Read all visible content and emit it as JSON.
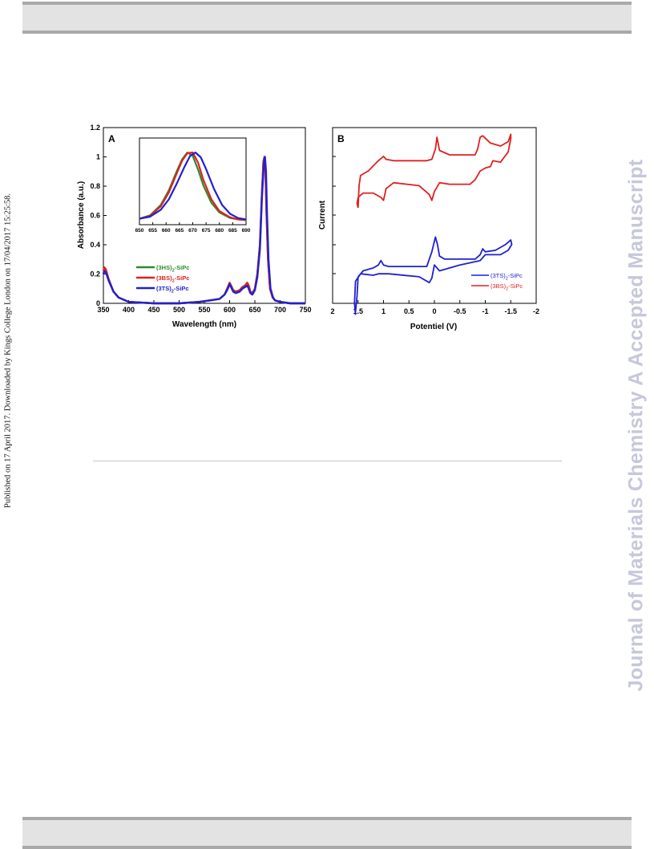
{
  "page": {
    "side_left_text": "Published on 17 April 2017. Downloaded by Kings College London on 17/04/2017 15:25:58.",
    "side_right_text": "Journal of Materials Chemistry A Accepted Manuscript"
  },
  "chart_data": [
    {
      "type": "line",
      "panel_label": "A",
      "xlabel": "Wavelength (nm)",
      "ylabel": "Absorbance (a.u.)",
      "xlim": [
        350,
        750
      ],
      "ylim": [
        0,
        1.2
      ],
      "xticks": [
        "350",
        "400",
        "450",
        "500",
        "550",
        "600",
        "650",
        "700",
        "750"
      ],
      "yticks": [
        "0",
        "0.2",
        "0.4",
        "0.6",
        "0.8",
        "1",
        "1.2"
      ],
      "legend": {
        "placement": "lower-left",
        "entries": [
          {
            "prefix": "(3HS)",
            "sub": "2",
            "suffix": "-SiPc",
            "color": "#2e8b2e"
          },
          {
            "prefix": "(3BS)",
            "sub": "2",
            "suffix": "-SiPc",
            "color": "#e02020"
          },
          {
            "prefix": "(3TS)",
            "sub": "2",
            "suffix": "-SiPc",
            "color": "#2020d0"
          }
        ]
      },
      "series": [
        {
          "color": "#2e8b2e",
          "x": [
            350,
            352,
            355,
            360,
            370,
            380,
            400,
            450,
            500,
            540,
            560,
            580,
            590,
            595,
            600,
            603,
            607,
            612,
            620,
            625,
            630,
            635,
            638,
            641,
            645,
            650,
            655,
            660,
            664,
            667,
            669,
            671,
            673,
            676,
            680,
            685,
            690,
            700,
            720,
            750
          ],
          "y": [
            0.2,
            0.23,
            0.22,
            0.16,
            0.08,
            0.04,
            0.01,
            0.0,
            0.0,
            0.01,
            0.02,
            0.03,
            0.06,
            0.1,
            0.14,
            0.12,
            0.09,
            0.08,
            0.09,
            0.11,
            0.12,
            0.14,
            0.12,
            0.08,
            0.07,
            0.1,
            0.2,
            0.4,
            0.75,
            0.97,
            1.0,
            0.9,
            0.62,
            0.3,
            0.1,
            0.04,
            0.02,
            0.01,
            0.0,
            0.0
          ]
        },
        {
          "color": "#e02020",
          "x": [
            350,
            352,
            355,
            360,
            370,
            380,
            400,
            450,
            500,
            540,
            560,
            580,
            590,
            595,
            600,
            603,
            607,
            612,
            620,
            625,
            630,
            635,
            638,
            641,
            645,
            650,
            655,
            660,
            664,
            667,
            669,
            671,
            673,
            676,
            680,
            685,
            690,
            700,
            720,
            750
          ],
          "y": [
            0.22,
            0.245,
            0.23,
            0.17,
            0.08,
            0.04,
            0.01,
            0.0,
            0.0,
            0.01,
            0.02,
            0.03,
            0.06,
            0.1,
            0.14,
            0.12,
            0.09,
            0.08,
            0.09,
            0.11,
            0.12,
            0.14,
            0.12,
            0.08,
            0.07,
            0.1,
            0.2,
            0.4,
            0.75,
            0.97,
            1.0,
            0.9,
            0.62,
            0.3,
            0.1,
            0.04,
            0.02,
            0.01,
            0.0,
            0.0
          ]
        },
        {
          "color": "#2020d0",
          "x": [
            350,
            352,
            355,
            360,
            370,
            380,
            400,
            450,
            500,
            540,
            560,
            580,
            590,
            595,
            600,
            603,
            607,
            612,
            620,
            625,
            630,
            635,
            638,
            641,
            645,
            650,
            655,
            660,
            664,
            668,
            670,
            672,
            674,
            677,
            681,
            686,
            690,
            700,
            720,
            750
          ],
          "y": [
            0.2,
            0.22,
            0.21,
            0.16,
            0.08,
            0.04,
            0.01,
            0.0,
            0.0,
            0.01,
            0.02,
            0.03,
            0.06,
            0.09,
            0.13,
            0.11,
            0.08,
            0.07,
            0.08,
            0.1,
            0.11,
            0.12,
            0.1,
            0.07,
            0.06,
            0.09,
            0.18,
            0.37,
            0.72,
            0.96,
            1.0,
            0.9,
            0.62,
            0.3,
            0.1,
            0.04,
            0.02,
            0.01,
            0.0,
            0.0
          ]
        }
      ]
    },
    {
      "type": "line",
      "panel_label": "inset",
      "xlim": [
        650,
        690
      ],
      "xticks": [
        "650",
        "655",
        "660",
        "665",
        "670",
        "675",
        "680",
        "685",
        "690"
      ],
      "series": [
        {
          "color": "#2e8b2e",
          "x": [
            650,
            654,
            658,
            661,
            664,
            666,
            668,
            670,
            672,
            674,
            677,
            680,
            684,
            687,
            690
          ],
          "y": [
            0.04,
            0.09,
            0.24,
            0.45,
            0.73,
            0.9,
            1.0,
            0.95,
            0.75,
            0.52,
            0.27,
            0.13,
            0.05,
            0.03,
            0.02
          ]
        },
        {
          "color": "#e02020",
          "x": [
            650,
            654,
            658,
            661,
            664,
            666,
            668,
            670,
            672,
            674,
            677,
            680,
            684,
            687,
            690
          ],
          "y": [
            0.04,
            0.08,
            0.22,
            0.42,
            0.7,
            0.88,
            0.99,
            1.0,
            0.85,
            0.6,
            0.32,
            0.15,
            0.06,
            0.03,
            0.02
          ]
        },
        {
          "color": "#2020d0",
          "x": [
            650,
            654,
            658,
            661,
            664,
            667,
            669,
            671,
            673,
            675,
            678,
            681,
            684,
            687,
            690
          ],
          "y": [
            0.04,
            0.07,
            0.17,
            0.32,
            0.55,
            0.8,
            0.95,
            1.0,
            0.93,
            0.76,
            0.47,
            0.24,
            0.11,
            0.05,
            0.03
          ]
        }
      ]
    },
    {
      "type": "line",
      "panel_label": "B",
      "xlabel": "Potentiel (V)",
      "ylabel": "Current",
      "xlim": [
        2,
        -2
      ],
      "xticks": [
        "2",
        "1.5",
        "1",
        "0.5",
        "0",
        "-0.5",
        "-1",
        "-1.5",
        "-2"
      ],
      "legend": {
        "placement": "lower-right",
        "entries": [
          {
            "prefix": "(3TS)",
            "sub": "2",
            "suffix": "-SiPc",
            "color": "#2020d0"
          },
          {
            "prefix": "(3BS)",
            "sub": "2",
            "suffix": "-SiPc",
            "color": "#e02020"
          }
        ]
      },
      "series": [
        {
          "color": "#2020d0",
          "x": [
            1.55,
            1.52,
            1.5,
            1.4,
            1.2,
            1.1,
            1.05,
            1.0,
            0.9,
            0.5,
            0.15,
            0.05,
            -0.02,
            -0.06,
            -0.1,
            -0.2,
            -0.5,
            -0.8,
            -0.9,
            -0.95,
            -1.0,
            -1.2,
            -1.4,
            -1.5,
            -1.52,
            -1.45,
            -1.3,
            -1.0,
            -0.95,
            -0.9,
            -0.5,
            -0.1,
            0.0,
            0.05,
            0.1,
            0.3,
            0.9,
            1.05,
            1.1,
            1.2,
            1.45,
            1.55,
            1.57,
            1.55
          ],
          "y": [
            -0.66,
            -0.55,
            -0.42,
            -0.38,
            -0.36,
            -0.34,
            -0.31,
            -0.34,
            -0.35,
            -0.35,
            -0.35,
            -0.25,
            -0.15,
            -0.2,
            -0.28,
            -0.3,
            -0.3,
            -0.3,
            -0.27,
            -0.23,
            -0.25,
            -0.24,
            -0.2,
            -0.17,
            -0.2,
            -0.24,
            -0.27,
            -0.27,
            -0.29,
            -0.31,
            -0.34,
            -0.38,
            -0.34,
            -0.43,
            -0.46,
            -0.42,
            -0.4,
            -0.4,
            -0.4,
            -0.41,
            -0.4,
            -0.45,
            -0.6,
            -0.68
          ]
        },
        {
          "color": "#e02020",
          "x": [
            1.5,
            1.48,
            1.45,
            1.3,
            1.1,
            1.0,
            0.95,
            0.8,
            0.5,
            0.15,
            0.05,
            -0.02,
            -0.05,
            -0.1,
            -0.3,
            -0.7,
            -0.8,
            -0.85,
            -0.9,
            -0.95,
            -1.1,
            -1.3,
            -1.45,
            -1.5,
            -1.5,
            -1.45,
            -1.3,
            -1.15,
            -1.1,
            -1.0,
            -0.9,
            -0.8,
            -0.7,
            -0.3,
            -0.1,
            0.0,
            0.05,
            0.1,
            0.3,
            0.8,
            0.95,
            1.0,
            1.05,
            1.2,
            1.4,
            1.5,
            1.52,
            1.5
          ],
          "y": [
            0.05,
            0.2,
            0.27,
            0.3,
            0.37,
            0.4,
            0.38,
            0.37,
            0.37,
            0.37,
            0.38,
            0.45,
            0.53,
            0.44,
            0.41,
            0.41,
            0.41,
            0.45,
            0.53,
            0.54,
            0.49,
            0.47,
            0.5,
            0.55,
            0.52,
            0.43,
            0.36,
            0.37,
            0.33,
            0.32,
            0.3,
            0.24,
            0.21,
            0.21,
            0.22,
            0.16,
            0.1,
            0.14,
            0.2,
            0.22,
            0.18,
            0.1,
            0.12,
            0.15,
            0.15,
            0.12,
            0.08,
            0.05
          ]
        }
      ]
    }
  ]
}
